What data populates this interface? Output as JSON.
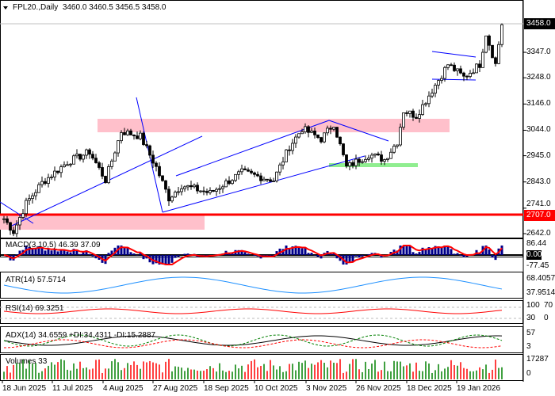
{
  "header": {
    "symbol_label": "FPL20.,Daily",
    "ohlc": "3460.0 3460.5 3456.5 3458.0"
  },
  "price_axis": {
    "ticks": [
      "3347.0",
      "3248.0",
      "3146.0",
      "3044.0",
      "2945.0",
      "2843.0",
      "2741.0",
      "2642.0"
    ],
    "current": "3458.0",
    "level": "2707.0",
    "tick_values": [
      3347,
      3248,
      3146,
      3044,
      2945,
      2843,
      2741,
      2642
    ],
    "current_value": 3458,
    "level_value": 2707
  },
  "indicators": {
    "macd": {
      "label": "MACD(3,10,5) 46.39 37.09",
      "ticks": [
        "86.44",
        "0.00",
        "-77.45"
      ]
    },
    "atr": {
      "label": "ATR(14) 57.5714",
      "ticks": [
        "68.4057",
        "37.9514"
      ]
    },
    "rsi": {
      "label": "RSI(14) 69.3251",
      "ticks": [
        "100",
        "70",
        "30",
        "0"
      ]
    },
    "adx": {
      "label": "ADX(14) 34.6559 +DI:34.4311 -DI:15.2887",
      "ticks": [
        "57",
        "3"
      ]
    },
    "volumes": {
      "label": "Volumes 33",
      "ticks": [
        "17287",
        "0"
      ]
    }
  },
  "time_axis": [
    "18 Jun 2025",
    "11 Jul 2025",
    "4 Aug 2025",
    "27 Aug 2025",
    "18 Sep 2025",
    "10 Oct 2025",
    "3 Nov 2025",
    "26 Nov 2025",
    "18 Dec 2025",
    "19 Jan 2026"
  ],
  "colors": {
    "bull": "#000000",
    "level": "#ff0000",
    "zone": "#ffc0cb",
    "support": "#90ee90",
    "trend": "#0000ff",
    "macd_hist": "#00008b",
    "signal": "#ff0000",
    "atr": "#1e90ff"
  },
  "price_path": [
    [
      0,
      2700
    ],
    [
      3,
      2650
    ],
    [
      7,
      2760
    ],
    [
      12,
      2840
    ],
    [
      20,
      2920
    ],
    [
      27,
      2960
    ],
    [
      32,
      2850
    ],
    [
      37,
      3040
    ],
    [
      43,
      3020
    ],
    [
      48,
      2900
    ],
    [
      52,
      2780
    ],
    [
      56,
      2830
    ],
    [
      65,
      2800
    ],
    [
      75,
      2880
    ],
    [
      85,
      2850
    ],
    [
      90,
      2980
    ],
    [
      94,
      3050
    ],
    [
      100,
      3010
    ],
    [
      104,
      3070
    ],
    [
      108,
      2900
    ],
    [
      115,
      2950
    ],
    [
      120,
      2930
    ],
    [
      124,
      3000
    ],
    [
      126,
      3120
    ],
    [
      130,
      3100
    ],
    [
      135,
      3200
    ],
    [
      140,
      3300
    ],
    [
      145,
      3250
    ],
    [
      150,
      3300
    ],
    [
      152,
      3420
    ],
    [
      155,
      3300
    ],
    [
      157,
      3458
    ]
  ]
}
